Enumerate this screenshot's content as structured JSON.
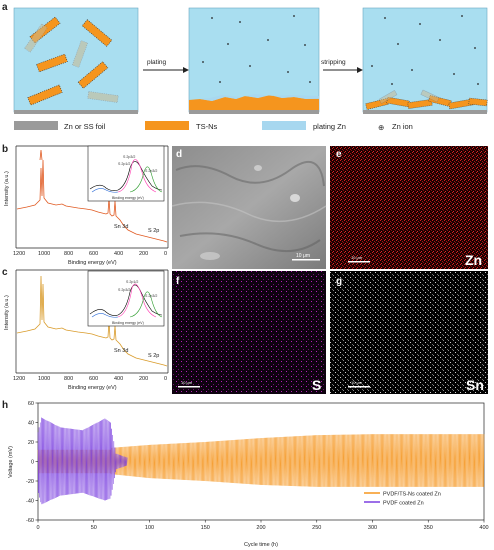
{
  "panel_a": {
    "label": "a",
    "arrow_plating": "plating",
    "arrow_stripping": "stripping",
    "legend": {
      "foil": "Zn or SS foil",
      "tsns": "TS-Ns",
      "plating_zn": "plating Zn",
      "zn_ion_symbol": "⊕",
      "zn_ion": "Zn ion"
    },
    "colors": {
      "electrolyte": "#a9def0",
      "foil": "#9a9a9a",
      "tsns": "#f5951e",
      "plating_zn": "#a7d7ef"
    }
  },
  "panel_b": {
    "label": "b",
    "xlabel": "Binding energy (eV)",
    "ylabel": "Intensity (a.u.)",
    "xticks": [
      "1200",
      "1000",
      "800",
      "600",
      "400",
      "200",
      "0"
    ],
    "annotations": [
      "Sn 3d",
      "S 2p"
    ],
    "inset": {
      "xlabel": "Binding energy (eV)",
      "peaks": [
        "S 2p3/2",
        "S 2p1/2",
        "S 2p3/2"
      ]
    }
  },
  "panel_c": {
    "label": "c",
    "xlabel": "Binding energy (eV)",
    "ylabel": "Intensity (a.u.)",
    "xticks": [
      "1200",
      "1000",
      "800",
      "600",
      "400",
      "200",
      "0"
    ],
    "annotations": [
      "Sn 3d",
      "S 2p"
    ],
    "inset": {
      "xlabel": "Binding energy (eV)",
      "peaks": [
        "S 2p1/2",
        "S 2p3/2",
        "S 2p3/2"
      ]
    }
  },
  "panel_d": {
    "label": "d",
    "scale": "10 μm"
  },
  "panel_e": {
    "label": "e",
    "element": "Zn",
    "scale": "10 μm",
    "color": "#d21b1b"
  },
  "panel_f": {
    "label": "f",
    "element": "S",
    "scale": "10 μm",
    "color": "#b31fb8"
  },
  "panel_g": {
    "label": "g",
    "element": "Sn",
    "scale": "10 μm",
    "color": "#dddddd"
  },
  "chart_data": {
    "type": "line",
    "label": "h",
    "xlabel": "Cycle time (h)",
    "ylabel": "Voltage (mV)",
    "xlim": [
      0,
      400
    ],
    "ylim": [
      -60,
      60
    ],
    "xticks": [
      "0",
      "50",
      "100",
      "150",
      "200",
      "250",
      "300",
      "350",
      "400"
    ],
    "yticks": [
      "-60",
      "-40",
      "-20",
      "0",
      "20",
      "40",
      "60"
    ],
    "series": [
      {
        "name": "PVDF/TS-Ns coated Zn",
        "color": "#f5951e",
        "envelope": {
          "x": [
            0,
            65,
            66,
            100,
            150,
            200,
            250,
            300,
            350,
            400
          ],
          "y_max": [
            12,
            12,
            14,
            17,
            20,
            24,
            27,
            28,
            28,
            28
          ],
          "y_min": [
            -12,
            -12,
            -13,
            -17,
            -20,
            -24,
            -26,
            -26,
            -26,
            -26
          ]
        }
      },
      {
        "name": "PVDF coated Zn",
        "color": "#7a3fe0",
        "envelope": {
          "x": [
            0,
            3,
            20,
            40,
            60,
            65,
            70,
            80
          ],
          "y_max": [
            30,
            45,
            35,
            32,
            44,
            40,
            8,
            4
          ],
          "y_min": [
            -30,
            -44,
            -35,
            -32,
            -40,
            -38,
            -8,
            -4
          ]
        }
      }
    ]
  }
}
